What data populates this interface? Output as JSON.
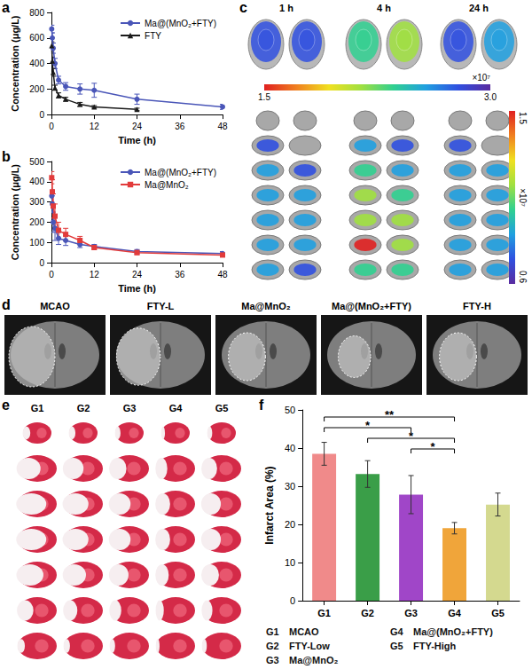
{
  "chart_data": [
    {
      "type": "line",
      "annotations": [
        "a"
      ],
      "xlabel": "Time (h)",
      "ylabel": "Concentration (μg/L)",
      "x": [
        0.083,
        0.25,
        0.5,
        1,
        2,
        4,
        8,
        12,
        24,
        48
      ],
      "xlim": [
        0,
        48
      ],
      "xticks": [
        0,
        12,
        24,
        36,
        48
      ],
      "ylim": [
        0,
        800
      ],
      "yticks": [
        0,
        200,
        400,
        600,
        800
      ],
      "legend": "upper right",
      "series": [
        {
          "name": "Ma@(MnO₂+FTY)",
          "color": "#4a56b8",
          "marker": "circle",
          "values": [
            670,
            600,
            520,
            400,
            270,
            220,
            200,
            190,
            120,
            60
          ],
          "errors": [
            30,
            40,
            40,
            40,
            30,
            30,
            40,
            55,
            40,
            20
          ]
        },
        {
          "name": "FTY",
          "color": "#1a1a1a",
          "marker": "triangle",
          "values": [
            540,
            420,
            330,
            210,
            150,
            120,
            80,
            60,
            40,
            null
          ],
          "errors": [
            30,
            30,
            30,
            20,
            20,
            15,
            15,
            10,
            10,
            null
          ]
        }
      ]
    },
    {
      "type": "line",
      "annotations": [
        "b"
      ],
      "xlabel": "Time (h)",
      "ylabel": "Concentration (μg/L)",
      "x": [
        0.083,
        0.25,
        0.5,
        1,
        2,
        4,
        8,
        12,
        24,
        48
      ],
      "xlim": [
        0,
        48
      ],
      "xticks": [
        0,
        12,
        24,
        36,
        48
      ],
      "ylim": [
        0,
        500
      ],
      "yticks": [
        0,
        100,
        200,
        300,
        400,
        500
      ],
      "legend": "upper right",
      "series": [
        {
          "name": "Ma@(MnO₂+FTY)",
          "color": "#4a56b8",
          "marker": "circle",
          "values": [
            330,
            290,
            200,
            170,
            120,
            110,
            90,
            80,
            55,
            45
          ],
          "errors": [
            30,
            40,
            50,
            60,
            30,
            25,
            15,
            10,
            10,
            10
          ]
        },
        {
          "name": "Ma@MnO₂",
          "color": "#e23b3b",
          "marker": "square",
          "values": [
            420,
            350,
            280,
            230,
            160,
            140,
            110,
            75,
            50,
            38
          ],
          "errors": [
            30,
            60,
            60,
            60,
            40,
            30,
            20,
            10,
            10,
            8
          ]
        }
      ]
    },
    {
      "type": "bar",
      "annotations": [
        "f"
      ],
      "ylabel": "Infarct Area (%)",
      "categories": [
        "G1",
        "G2",
        "G3",
        "G4",
        "G5"
      ],
      "values": [
        38.5,
        33.2,
        27.8,
        19,
        25.2
      ],
      "errors": [
        3,
        3.5,
        5,
        1.5,
        3
      ],
      "colors": [
        "#f08a8a",
        "#3a9e48",
        "#a046c8",
        "#f0a53a",
        "#d4d98f"
      ],
      "ylim": [
        0,
        50
      ],
      "yticks": [
        0,
        10,
        20,
        30,
        40,
        50
      ],
      "significance": [
        {
          "from": "G1",
          "to": "G4",
          "label": "**"
        },
        {
          "from": "G1",
          "to": "G3",
          "label": "*"
        },
        {
          "from": "G2",
          "to": "G4",
          "label": "*"
        },
        {
          "from": "G3",
          "to": "G4",
          "label": "*"
        }
      ],
      "group_names": [
        "MCAO",
        "FTY-Low",
        "Ma@MnO₂",
        "Ma@(MnO₂+FTY)",
        "FTY-High"
      ]
    }
  ],
  "panel_c": {
    "annotations": [
      "c"
    ],
    "times": [
      "1 h",
      "4 h",
      "24 h"
    ],
    "whole_brain": [
      [
        2.8,
        2.75
      ],
      [
        2.3,
        2.1
      ],
      [
        2.7,
        2.65
      ]
    ],
    "slices": [
      [
        [
          null,
          null
        ],
        [
          0.75,
          null
        ],
        [
          0.8,
          0.75
        ],
        [
          0.8,
          0.8
        ],
        [
          0.85,
          0.8
        ],
        [
          0.85,
          0.8
        ],
        [
          0.8,
          0.75
        ]
      ],
      [
        [
          null,
          null
        ],
        [
          0.8,
          0.75
        ],
        [
          0.95,
          0.9
        ],
        [
          1.05,
          1.0
        ],
        [
          1.05,
          1.05
        ],
        [
          1.45,
          1.1
        ],
        [
          1.0,
          0.95
        ]
      ],
      [
        [
          null,
          null
        ],
        [
          0.75,
          null
        ],
        [
          0.8,
          0.8
        ],
        [
          0.85,
          0.85
        ],
        [
          0.85,
          0.85
        ],
        [
          0.9,
          0.85
        ],
        [
          0.85,
          0.8
        ]
      ]
    ],
    "colorbar_top": {
      "range": [
        1.5,
        3.0
      ],
      "ticks": [
        1.5,
        {
          "value": 3.0,
          "label": "3.0"
        }
      ],
      "label": "×10⁷"
    },
    "colorbar_side": {
      "range": [
        0.6,
        1.5
      ],
      "ticks": [
        0.6,
        1.5
      ],
      "label": "×10⁷"
    }
  },
  "panel_d": {
    "annotations": [
      "d"
    ],
    "labels": [
      "MCAO",
      "FTY-L",
      "Ma@MnO₂",
      "Ma@(MnO₂+FTY)",
      "FTY-H"
    ]
  },
  "panel_e": {
    "annotations": [
      "e"
    ],
    "labels": [
      "G1",
      "G2",
      "G3",
      "G4",
      "G5"
    ]
  }
}
